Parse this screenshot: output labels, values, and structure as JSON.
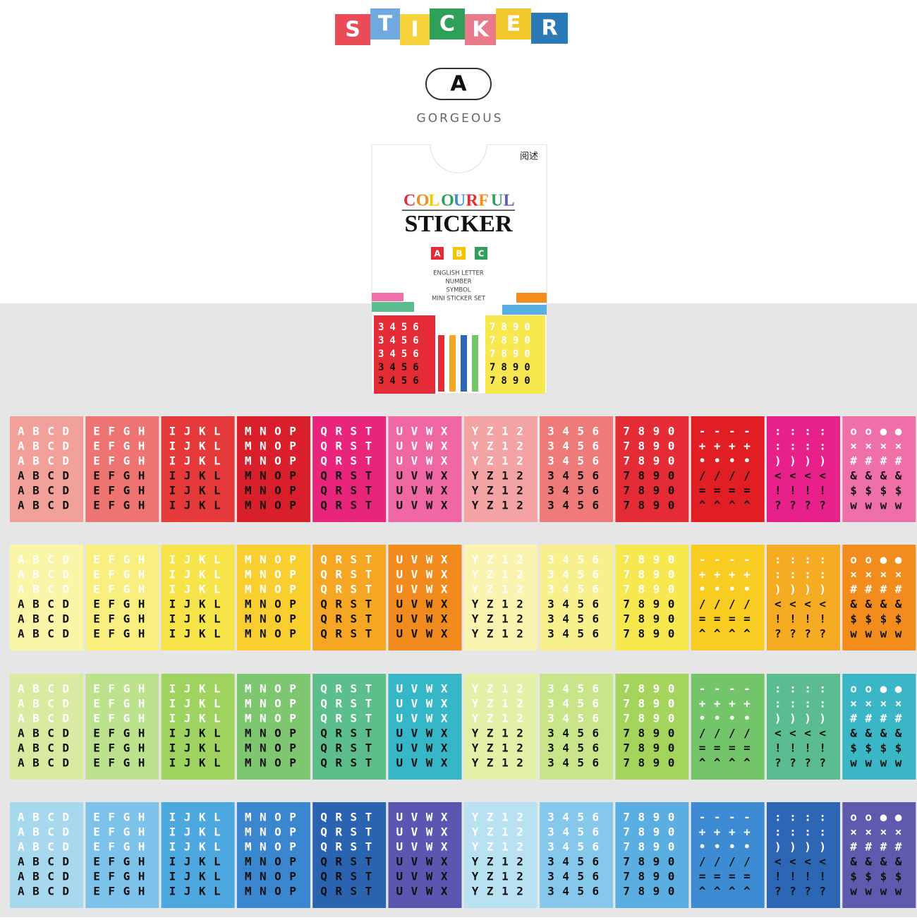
{
  "header": {
    "title_letters": [
      "S",
      "T",
      "I",
      "C",
      "K",
      "E",
      "R"
    ],
    "badge": "A",
    "subtitle": "GORGEOUS"
  },
  "package": {
    "logo": "阅述",
    "colourful_letters": [
      "C",
      "O",
      "L",
      "O",
      "U",
      "R",
      "F",
      "U",
      "L"
    ],
    "title": "STICKER",
    "abc": [
      "A",
      "B",
      "C"
    ],
    "lines": [
      "ENGLISH LETTER",
      "NUMBER",
      "SYMBOL",
      "MINI STICKER SET"
    ],
    "mini_left": "3456",
    "mini_right": "7890"
  },
  "sheet_texts": [
    [
      "ABCD",
      "ABCD",
      "ABCD",
      "ABCD",
      "ABCD",
      "ABCD"
    ],
    [
      "EFGH",
      "EFGH",
      "EFGH",
      "EFGH",
      "EFGH",
      "EFGH"
    ],
    [
      "IJKL",
      "IJKL",
      "IJKL",
      "IJKL",
      "IJKL",
      "IJKL"
    ],
    [
      "MNOP",
      "MNOP",
      "MNOP",
      "MNOP",
      "MNOP",
      "MNOP"
    ],
    [
      "QRST",
      "QRST",
      "QRST",
      "QRST",
      "QRST",
      "QRST"
    ],
    [
      "UVWX",
      "UVWX",
      "UVWX",
      "UVWX",
      "UVWX",
      "UVWX"
    ],
    [
      "YZ12",
      "YZ12",
      "YZ12",
      "YZ12",
      "YZ12",
      "YZ12"
    ],
    [
      "3456",
      "3456",
      "3456",
      "3456",
      "3456",
      "3456"
    ],
    [
      "7890",
      "7890",
      "7890",
      "7890",
      "7890",
      "7890"
    ],
    [
      "----",
      "++++",
      "••••",
      "////",
      "====",
      "^^^^"
    ],
    [
      "::::",
      "::::",
      "))))",
      "<<<<",
      "!!!!",
      "????"
    ],
    [
      "oo●●",
      "××××",
      "####",
      "&&&&",
      "$$$$",
      "wwww"
    ]
  ],
  "sheet_rows": [
    [
      "#f2a09a",
      "#ee7471",
      "#e6393a",
      "#d91f2b",
      "#e8257a",
      "#ef67a3",
      "#f3a3a4",
      "#ef7a7a",
      "#e52c36",
      "#e01e24",
      "#e8208a",
      "#ef6fa8"
    ],
    [
      "#f9f6a8",
      "#f8ef7e",
      "#f7e449",
      "#f8cf2e",
      "#f5a623",
      "#f28b1e",
      "#fbf4b0",
      "#f8f08c",
      "#f7e850",
      "#f9cc22",
      "#f5ab22",
      "#f28c1c"
    ],
    [
      "#d9eba0",
      "#bde28d",
      "#9fd35f",
      "#7fc671",
      "#5cbf8b",
      "#35b7c8",
      "#e3f0a8",
      "#c9e58a",
      "#a4d45c",
      "#74c46a",
      "#5bbd8f",
      "#3bb6c6"
    ],
    [
      "#a8d8ee",
      "#7cc2ea",
      "#4ea8e0",
      "#3a86cf",
      "#2a63b0",
      "#5b57b0",
      "#b8e1f2",
      "#86c8ec",
      "#5aaee2",
      "#3c8bd3",
      "#2c66b4",
      "#5e5aae"
    ]
  ]
}
